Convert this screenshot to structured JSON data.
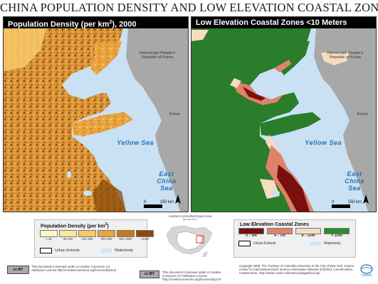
{
  "title": "CHINA POPULATION DENSITY AND LOW ELEVATION COASTAL ZONES",
  "left_panel": {
    "header_prefix": "Population Density (per km",
    "header_sup": "2",
    "header_suffix": "), 2000"
  },
  "right_panel": {
    "header": "Low Elevation Coastal Zones <10 Meters"
  },
  "map_labels": {
    "dprk": "Democratic People's Republic of Korea",
    "korea": "Korea",
    "yellow_sea": "Yellow Sea",
    "east_china_sea": "East China Sea",
    "scale_zero": "0",
    "scale_150": "150 km"
  },
  "population_legend": {
    "title_prefix": "Population Density (per km",
    "title_sup": "2",
    "title_suffix": ")",
    "classes": [
      {
        "label": "< 25",
        "color": "#fff6c8"
      },
      {
        "label": "26-100",
        "color": "#fde79a"
      },
      {
        "label": "101-250",
        "color": "#f8c96a"
      },
      {
        "label": "251-500",
        "color": "#e9a440"
      },
      {
        "label": "501-1000",
        "color": "#c8771e"
      },
      {
        "label": ">1000",
        "color": "#8a4a0a"
      }
    ],
    "urban_label": "Urban Extents",
    "water_label": "Waterbody",
    "water_color": "#cfe6f7"
  },
  "elevation_legend": {
    "title": "Low Elevation Coastal Zones",
    "classes": [
      {
        "label": "0 - 3m",
        "color": "#7a0f0f"
      },
      {
        "label": "4 - 7m",
        "color": "#e0826a"
      },
      {
        "label": "8 - 10m",
        "color": "#f6dcc0"
      },
      {
        "label": "> 10m",
        "color": "#2e8b2e"
      }
    ],
    "urban_label": "Urban Extents",
    "water_label": "Waterbody",
    "water_color": "#cfe6f7"
  },
  "projection": "Lambert Azimuthal Equal Area Projection",
  "license_left": "This document is licensed under a Creative Commons 3.0 Attribution License http://creativecommons.org/licenses/by/3.0/",
  "license_center": "This document is licensed under a Creative Commons 3.0 Attribution License http://creativecommons.org/licenses/by/3.0/",
  "copyright": "Copyright 2009. The Trustees of Columbia University in the City of New York. Source: Center for International Earth Science Information Network (CIESIN), Low Elevation Coastal Zone, http://sedac.ciesin.columbia.edu/gpw/lecz.jsp",
  "cc_badge": "cc BY",
  "logo_text": "CIESIN",
  "colors": {
    "water": "#c9e1f3",
    "land_gray": "#a8a8a8",
    "green": "#2a7d2a"
  }
}
